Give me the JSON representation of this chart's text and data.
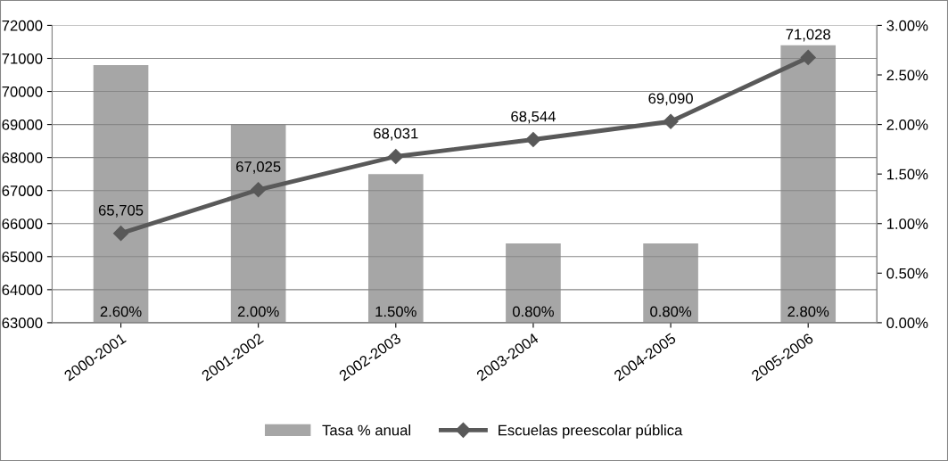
{
  "chart_data": {
    "type": "bar",
    "categories": [
      "2000-2001",
      "2001-2002",
      "2002-2003",
      "2003-2004",
      "2004-2005",
      "2005-2006"
    ],
    "series": [
      {
        "name": "Tasa % anual",
        "axis": "y2",
        "color": "#a6a6a6",
        "values": [
          2.6,
          2.0,
          1.5,
          0.8,
          0.8,
          2.8
        ],
        "value_labels": [
          "2.60%",
          "2.00%",
          "1.50%",
          "0.80%",
          "0.80%",
          "2.80%"
        ]
      },
      {
        "name": "Escuelas preescolar pública",
        "type": "line",
        "color": "#595959",
        "values": [
          65705,
          67025,
          68031,
          68544,
          69090,
          71028
        ],
        "value_labels": [
          "65,705",
          "67,025",
          "68,031",
          "68,544",
          "69,090",
          "71,028"
        ],
        "marker": "diamond",
        "line_style": "solid"
      }
    ],
    "ylim": [
      63000,
      72000
    ],
    "yticks": [
      63000,
      64000,
      65000,
      66000,
      67000,
      68000,
      69000,
      70000,
      71000,
      72000
    ],
    "y2lim": [
      0,
      3
    ],
    "y2ticks": [
      {
        "value": 0,
        "label": "0.00%"
      },
      {
        "value": 0.5,
        "label": "0.50%"
      },
      {
        "value": 1,
        "label": "1.00%"
      },
      {
        "value": 1.5,
        "label": "1.50%"
      },
      {
        "value": 2,
        "label": "2.00%"
      },
      {
        "value": 2.5,
        "label": "2.50%"
      },
      {
        "value": 3,
        "label": "3.00%"
      }
    ],
    "grid": "y",
    "legend": "bottom"
  }
}
